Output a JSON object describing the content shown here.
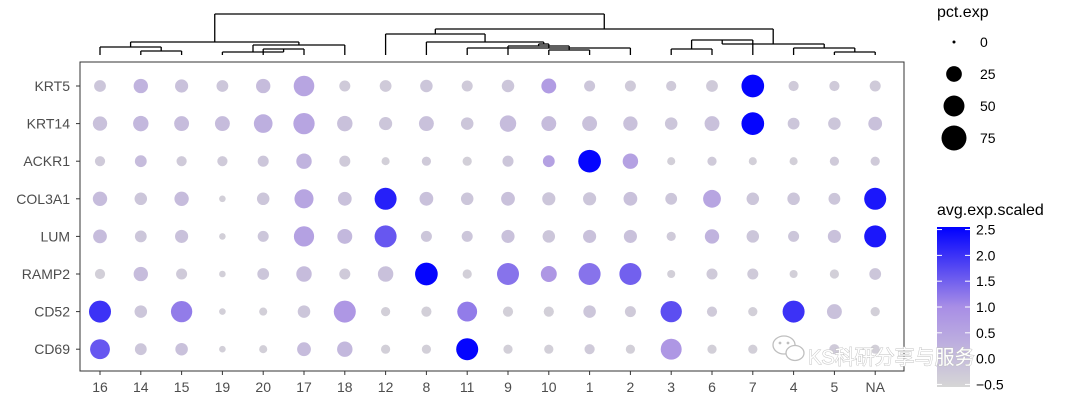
{
  "chart_data": {
    "type": "dot",
    "genes": [
      "KRT5",
      "KRT14",
      "ACKR1",
      "COL3A1",
      "LUM",
      "RAMP2",
      "CD52",
      "CD69"
    ],
    "clusters": [
      "16",
      "14",
      "15",
      "19",
      "20",
      "17",
      "18",
      "12",
      "8",
      "11",
      "9",
      "10",
      "1",
      "2",
      "3",
      "6",
      "7",
      "4",
      "5",
      "NA"
    ],
    "pct_exp": [
      [
        12,
        20,
        16,
        12,
        20,
        48,
        10,
        12,
        14,
        10,
        14,
        22,
        10,
        10,
        8,
        12,
        60,
        8,
        8,
        10
      ],
      [
        20,
        24,
        22,
        22,
        38,
        52,
        24,
        16,
        22,
        14,
        28,
        22,
        22,
        20,
        14,
        22,
        60,
        12,
        14,
        18
      ],
      [
        8,
        12,
        8,
        8,
        10,
        24,
        10,
        4,
        6,
        6,
        10,
        12,
        60,
        24,
        4,
        6,
        4,
        4,
        6,
        6
      ],
      [
        20,
        14,
        20,
        2,
        14,
        40,
        18,
        56,
        18,
        14,
        18,
        16,
        16,
        18,
        12,
        34,
        14,
        14,
        12,
        56
      ],
      [
        18,
        12,
        16,
        2,
        10,
        46,
        22,
        56,
        10,
        10,
        16,
        14,
        16,
        16,
        6,
        20,
        14,
        10,
        16,
        56
      ],
      [
        8,
        20,
        10,
        2,
        12,
        24,
        10,
        24,
        60,
        6,
        56,
        26,
        56,
        56,
        4,
        10,
        10,
        4,
        6,
        12
      ],
      [
        56,
        14,
        52,
        2,
        4,
        14,
        56,
        6,
        8,
        44,
        8,
        8,
        14,
        10,
        52,
        8,
        6,
        56,
        22,
        6
      ],
      [
        44,
        12,
        14,
        2,
        4,
        18,
        24,
        6,
        6,
        56,
        6,
        6,
        8,
        6,
        50,
        6,
        6,
        8,
        8,
        6
      ]
    ],
    "avg_exp_scaled": [
      [
        -0.2,
        0.2,
        -0.1,
        -0.2,
        0.0,
        0.5,
        -0.3,
        -0.3,
        -0.2,
        -0.3,
        -0.2,
        0.7,
        -0.2,
        -0.3,
        -0.3,
        -0.3,
        2.5,
        -0.3,
        -0.3,
        -0.3
      ],
      [
        -0.1,
        0.1,
        0.0,
        0.0,
        0.3,
        0.5,
        -0.1,
        -0.2,
        -0.1,
        -0.2,
        0.0,
        0.0,
        -0.1,
        -0.1,
        -0.2,
        -0.1,
        2.5,
        -0.2,
        -0.2,
        -0.1
      ],
      [
        -0.3,
        0.0,
        -0.3,
        -0.3,
        -0.2,
        0.2,
        -0.3,
        -0.4,
        -0.3,
        -0.4,
        -0.2,
        0.6,
        2.5,
        0.6,
        -0.4,
        -0.3,
        -0.4,
        -0.4,
        -0.3,
        -0.3
      ],
      [
        0.0,
        -0.2,
        0.0,
        -0.4,
        -0.2,
        0.5,
        -0.1,
        2.2,
        -0.1,
        -0.2,
        -0.1,
        -0.2,
        -0.2,
        -0.1,
        -0.2,
        0.5,
        -0.2,
        -0.2,
        -0.2,
        2.3
      ],
      [
        0.0,
        -0.2,
        -0.1,
        -0.4,
        -0.2,
        0.6,
        0.1,
        1.6,
        -0.2,
        -0.2,
        -0.1,
        -0.2,
        -0.1,
        -0.1,
        -0.3,
        0.2,
        -0.2,
        -0.2,
        -0.1,
        2.3
      ],
      [
        -0.4,
        0.0,
        -0.3,
        -0.4,
        -0.2,
        0.0,
        -0.3,
        -0.1,
        2.5,
        -0.4,
        1.3,
        0.8,
        1.3,
        1.5,
        -0.4,
        -0.3,
        -0.3,
        -0.4,
        -0.4,
        -0.2
      ],
      [
        2.0,
        -0.2,
        1.2,
        -0.4,
        -0.4,
        -0.2,
        0.8,
        -0.4,
        -0.4,
        1.2,
        -0.4,
        -0.4,
        -0.2,
        -0.3,
        1.7,
        -0.3,
        -0.4,
        2.0,
        -0.1,
        -0.4
      ],
      [
        1.6,
        -0.2,
        -0.1,
        -0.4,
        -0.4,
        0.0,
        0.1,
        -0.4,
        -0.4,
        2.5,
        -0.4,
        -0.4,
        -0.3,
        -0.4,
        0.8,
        -0.4,
        -0.4,
        -0.3,
        -0.3,
        -0.4
      ]
    ],
    "size_legend": {
      "title": "pct.exp",
      "breaks": [
        0,
        25,
        50,
        75
      ]
    },
    "color_legend": {
      "title": "avg.exp.scaled",
      "breaks": [
        2.5,
        2.0,
        1.5,
        1.0,
        0.5,
        0.0,
        -0.5
      ],
      "labels": [
        "2.5",
        "2.0",
        "1.5",
        "1.0",
        "0.5",
        "0.0",
        "−0.5"
      ],
      "low_color": "#d6d6d6",
      "high_color": "#0000ff",
      "limits": [
        -0.55,
        2.55
      ]
    },
    "dendrogram": true,
    "grid": false
  },
  "watermark": {
    "text": "KS科研分享与服务",
    "icon": "wechat-icon"
  }
}
